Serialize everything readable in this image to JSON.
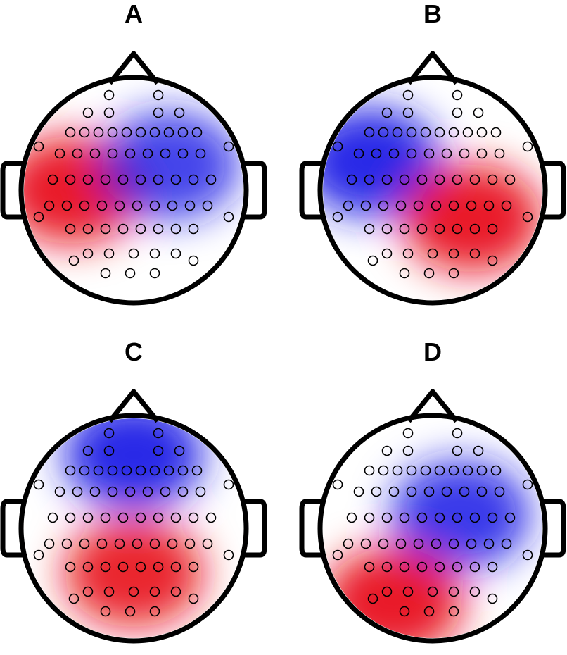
{
  "panels": [
    {
      "label": "A",
      "sources": [
        [
          -0.55,
          0.0,
          1
        ],
        [
          0.32,
          -0.22,
          -0.85
        ]
      ]
    },
    {
      "label": "B",
      "sources": [
        [
          -0.55,
          -0.25,
          -1
        ],
        [
          0.35,
          0.25,
          1
        ]
      ]
    },
    {
      "label": "C",
      "sources": [
        [
          0.0,
          -0.65,
          -1
        ],
        [
          0.0,
          0.4,
          0.95
        ]
      ]
    },
    {
      "label": "D",
      "sources": [
        [
          0.25,
          -0.12,
          -0.9
        ],
        [
          -0.35,
          0.65,
          1
        ]
      ]
    }
  ],
  "colors": {
    "positive": "#e8101a",
    "negative": "#1a1ae6",
    "neutral": "#ffffff",
    "outline": "#000000"
  },
  "icons": {
    "head": "head-outline-icon",
    "nose": "nose-icon",
    "ear": "ear-icon",
    "electrode": "electrode-marker-icon"
  }
}
